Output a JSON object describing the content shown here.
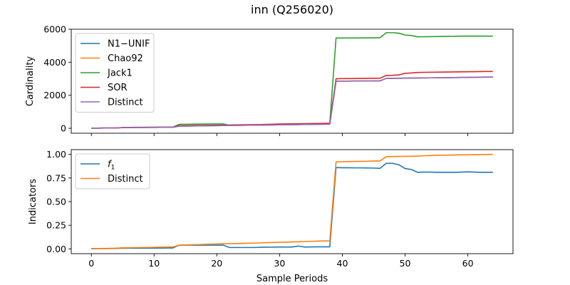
{
  "figure_title": "inn (Q256020)",
  "colors": {
    "blue": "#1f77b4",
    "orange": "#ff7f0e",
    "green": "#2ca02c",
    "red": "#d62728",
    "purple": "#9467bd"
  },
  "chart_data": [
    {
      "type": "line",
      "title": "",
      "xlabel": "",
      "ylabel": "Cardinality",
      "xlim": [
        -3.2,
        67.2
      ],
      "ylim": [
        -300,
        6000
      ],
      "yticks": [
        0,
        2000,
        4000,
        6000
      ],
      "xticks": [
        0,
        10,
        20,
        30,
        40,
        50,
        60
      ],
      "show_xtick_labels": false,
      "grid": false,
      "legend": "upper left",
      "x": [
        0,
        1,
        2,
        3,
        4,
        5,
        6,
        7,
        8,
        9,
        10,
        11,
        12,
        13,
        14,
        15,
        16,
        17,
        18,
        19,
        20,
        21,
        22,
        23,
        24,
        25,
        26,
        27,
        28,
        29,
        30,
        31,
        32,
        33,
        34,
        35,
        36,
        37,
        38,
        39,
        40,
        41,
        42,
        43,
        44,
        45,
        46,
        47,
        48,
        49,
        50,
        51,
        52,
        53,
        54,
        55,
        56,
        57,
        58,
        59,
        60,
        61,
        62,
        63,
        64
      ],
      "series": [
        {
          "name": "N1−UNIF",
          "color": "#1f77b4",
          "values": [
            10,
            12,
            14,
            16,
            20,
            40,
            45,
            48,
            50,
            52,
            55,
            58,
            60,
            62,
            130,
            135,
            140,
            145,
            150,
            155,
            160,
            165,
            170,
            175,
            180,
            185,
            190,
            195,
            200,
            205,
            210,
            215,
            220,
            225,
            230,
            235,
            240,
            245,
            250,
            2850,
            2855,
            2860,
            2862,
            2864,
            2866,
            2868,
            2870,
            3020,
            3025,
            3030,
            3035,
            3040,
            3045,
            3050,
            3055,
            3060,
            3065,
            3070,
            3075,
            3080,
            3085,
            3090,
            3095,
            3100,
            3100
          ]
        },
        {
          "name": "Chao92",
          "color": "#ff7f0e",
          "values": [
            10,
            12,
            14,
            16,
            20,
            40,
            45,
            48,
            50,
            52,
            55,
            58,
            60,
            62,
            130,
            135,
            140,
            145,
            150,
            155,
            160,
            165,
            170,
            175,
            180,
            185,
            190,
            195,
            200,
            205,
            210,
            215,
            220,
            225,
            230,
            235,
            240,
            245,
            250,
            2850,
            2855,
            2860,
            2862,
            2864,
            2866,
            2868,
            2870,
            3020,
            3025,
            3030,
            3035,
            3040,
            3045,
            3050,
            3055,
            3060,
            3065,
            3070,
            3075,
            3080,
            3085,
            3090,
            3095,
            3100,
            3100
          ]
        },
        {
          "name": "Jack1",
          "color": "#2ca02c",
          "values": [
            10,
            12,
            14,
            16,
            20,
            50,
            55,
            58,
            60,
            62,
            65,
            68,
            70,
            72,
            240,
            245,
            250,
            255,
            260,
            262,
            264,
            266,
            180,
            185,
            190,
            195,
            200,
            210,
            220,
            230,
            240,
            245,
            250,
            260,
            265,
            270,
            280,
            290,
            300,
            5470,
            5470,
            5470,
            5470,
            5475,
            5475,
            5478,
            5480,
            5790,
            5790,
            5760,
            5650,
            5620,
            5540,
            5545,
            5550,
            5555,
            5560,
            5565,
            5570,
            5580,
            5580,
            5580,
            5580,
            5580,
            5580
          ]
        },
        {
          "name": "SOR",
          "color": "#d62728",
          "values": [
            10,
            12,
            14,
            16,
            20,
            45,
            50,
            53,
            55,
            57,
            60,
            63,
            65,
            67,
            160,
            165,
            170,
            175,
            180,
            185,
            190,
            195,
            200,
            205,
            210,
            215,
            220,
            225,
            240,
            250,
            260,
            265,
            270,
            275,
            280,
            285,
            290,
            295,
            300,
            3000,
            3010,
            3010,
            3015,
            3020,
            3025,
            3030,
            3030,
            3200,
            3210,
            3230,
            3330,
            3350,
            3380,
            3390,
            3395,
            3400,
            3405,
            3410,
            3415,
            3420,
            3425,
            3430,
            3435,
            3440,
            3440
          ]
        },
        {
          "name": "Distinct",
          "color": "#9467bd",
          "values": [
            10,
            12,
            14,
            16,
            20,
            40,
            45,
            48,
            50,
            52,
            55,
            58,
            60,
            62,
            130,
            135,
            140,
            145,
            150,
            155,
            160,
            165,
            170,
            175,
            180,
            185,
            190,
            195,
            200,
            205,
            210,
            215,
            220,
            225,
            230,
            235,
            240,
            245,
            250,
            2850,
            2855,
            2860,
            2862,
            2864,
            2866,
            2868,
            2870,
            3020,
            3025,
            3030,
            3035,
            3040,
            3045,
            3050,
            3055,
            3060,
            3065,
            3070,
            3075,
            3080,
            3085,
            3090,
            3095,
            3100,
            3100
          ]
        }
      ]
    },
    {
      "type": "line",
      "title": "",
      "xlabel": "Sample Periods",
      "ylabel": "Indicators",
      "xlim": [
        -3.2,
        67.2
      ],
      "ylim": [
        -0.05,
        1.05
      ],
      "yticks": [
        0.0,
        0.25,
        0.5,
        0.75,
        1.0
      ],
      "ytick_labels": [
        "0.00",
        "0.25",
        "0.50",
        "0.75",
        "1.00"
      ],
      "xticks": [
        0,
        10,
        20,
        30,
        40,
        50,
        60
      ],
      "show_xtick_labels": true,
      "grid": false,
      "legend": "upper left",
      "x": [
        0,
        1,
        2,
        3,
        4,
        5,
        6,
        7,
        8,
        9,
        10,
        11,
        12,
        13,
        14,
        15,
        16,
        17,
        18,
        19,
        20,
        21,
        22,
        23,
        24,
        25,
        26,
        27,
        28,
        29,
        30,
        31,
        32,
        33,
        34,
        35,
        36,
        37,
        38,
        39,
        40,
        41,
        42,
        43,
        44,
        45,
        46,
        47,
        48,
        49,
        50,
        51,
        52,
        53,
        54,
        55,
        56,
        57,
        58,
        59,
        60,
        61,
        62,
        63,
        64
      ],
      "series": [
        {
          "name": "f1",
          "label_main": "f",
          "label_sub": "1",
          "color": "#1f77b4",
          "values": [
            0.002,
            0.003,
            0.003,
            0.004,
            0.005,
            0.008,
            0.008,
            0.008,
            0.008,
            0.009,
            0.009,
            0.009,
            0.01,
            0.01,
            0.04,
            0.04,
            0.04,
            0.04,
            0.04,
            0.04,
            0.04,
            0.04,
            0.015,
            0.015,
            0.015,
            0.015,
            0.015,
            0.017,
            0.018,
            0.019,
            0.02,
            0.02,
            0.02,
            0.03,
            0.02,
            0.021,
            0.022,
            0.022,
            0.022,
            0.86,
            0.858,
            0.858,
            0.857,
            0.857,
            0.856,
            0.855,
            0.852,
            0.905,
            0.905,
            0.89,
            0.85,
            0.84,
            0.81,
            0.812,
            0.812,
            0.81,
            0.81,
            0.81,
            0.81,
            0.812,
            0.815,
            0.812,
            0.81,
            0.81,
            0.81
          ]
        },
        {
          "name": "Distinct",
          "color": "#ff7f0e",
          "values": [
            0.003,
            0.004,
            0.005,
            0.006,
            0.008,
            0.012,
            0.013,
            0.014,
            0.015,
            0.016,
            0.017,
            0.018,
            0.019,
            0.02,
            0.04,
            0.042,
            0.044,
            0.046,
            0.048,
            0.05,
            0.052,
            0.054,
            0.056,
            0.057,
            0.058,
            0.06,
            0.062,
            0.064,
            0.066,
            0.068,
            0.07,
            0.072,
            0.074,
            0.076,
            0.078,
            0.08,
            0.082,
            0.084,
            0.086,
            0.92,
            0.922,
            0.924,
            0.925,
            0.926,
            0.927,
            0.93,
            0.93,
            0.975,
            0.977,
            0.978,
            0.979,
            0.98,
            0.982,
            0.985,
            0.987,
            0.99,
            0.991,
            0.992,
            0.994,
            0.995,
            0.996,
            0.997,
            0.998,
            0.999,
            1.0
          ]
        }
      ]
    }
  ]
}
